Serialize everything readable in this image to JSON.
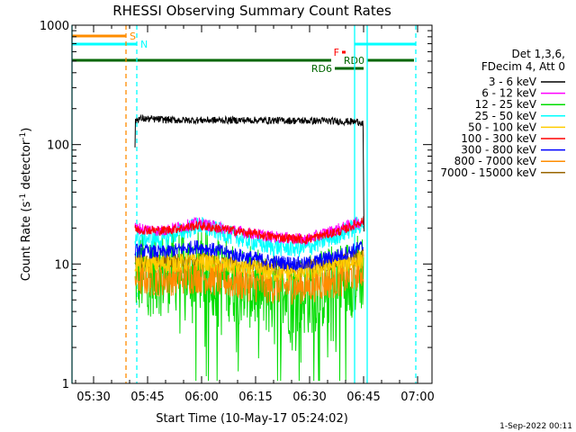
{
  "chart_data": {
    "type": "line",
    "title": "RHESSI Observing Summary Count Rates",
    "xlabel": "Start Time (10-May-17 05:24:02)",
    "ylabel": "Count Rate (s⁻¹ detector⁻¹)",
    "ylabel_parts": [
      "Count Rate (s",
      "-1",
      " detector",
      "-1",
      ")"
    ],
    "y_scale": "log",
    "xlim_min": [
      0,
      100
    ],
    "ylim": [
      1,
      1000
    ],
    "x_ticks": [
      {
        "t": 6,
        "label": "05:30"
      },
      {
        "t": 21,
        "label": "05:45"
      },
      {
        "t": 36,
        "label": "06:00"
      },
      {
        "t": 51,
        "label": "06:15"
      },
      {
        "t": 66,
        "label": "06:30"
      },
      {
        "t": 81,
        "label": "06:45"
      },
      {
        "t": 96,
        "label": "07:00"
      }
    ],
    "y_ticks": [
      {
        "v": 1,
        "label": "1"
      },
      {
        "v": 10,
        "label": "10"
      },
      {
        "v": 100,
        "label": "100"
      },
      {
        "v": 1000,
        "label": "1000"
      }
    ],
    "legend_header": [
      "Det 1,3,6,",
      "FDecim 4, Att 0"
    ],
    "legend_position": "right",
    "series": [
      {
        "name": "3 - 6 keV",
        "color": "#000000",
        "t": [
          17.5,
          17.5,
          18.5,
          30,
          50,
          70,
          80,
          80.9,
          81,
          81.2
        ],
        "v": [
          95,
          158,
          165,
          160,
          160,
          158,
          155,
          150,
          30,
          5
        ],
        "noise": 0.03
      },
      {
        "name": "6 - 12 keV",
        "color": "#ff00ff",
        "t": [
          17.5,
          25,
          35,
          45,
          55,
          65,
          75,
          81
        ],
        "v": [
          20,
          19,
          22,
          19,
          17,
          16,
          20,
          23
        ],
        "noise": 0.05
      },
      {
        "name": "12 - 25 keV",
        "color": "#00dd00",
        "t": [
          17.5,
          25,
          35,
          45,
          55,
          65,
          75,
          81
        ],
        "v": [
          8,
          8.5,
          9,
          7,
          5.5,
          5.5,
          7,
          9
        ],
        "noise": 0.35
      },
      {
        "name": "25 - 50 keV",
        "color": "#00ffff",
        "t": [
          17.5,
          25,
          35,
          45,
          55,
          65,
          75,
          81
        ],
        "v": [
          17,
          16,
          21,
          17,
          14,
          13.5,
          18,
          22
        ],
        "noise": 0.08
      },
      {
        "name": "50 - 100 keV",
        "color": "#ffcc00",
        "t": [
          17.5,
          25,
          35,
          45,
          55,
          65,
          75,
          81
        ],
        "v": [
          10,
          10,
          10.5,
          9.5,
          8.5,
          8.5,
          10,
          11
        ],
        "noise": 0.08
      },
      {
        "name": "100 - 300 keV",
        "color": "#ff0000",
        "t": [
          17.5,
          25,
          35,
          45,
          55,
          65,
          75,
          81
        ],
        "v": [
          19.5,
          19,
          21,
          19,
          17,
          16,
          19,
          23
        ],
        "noise": 0.04
      },
      {
        "name": "300 - 800 keV",
        "color": "#0000ff",
        "t": [
          17.5,
          25,
          35,
          45,
          55,
          65,
          75,
          81
        ],
        "v": [
          13,
          12.5,
          14,
          12,
          10.5,
          10,
          12,
          14
        ],
        "noise": 0.06
      },
      {
        "name": "800 - 7000 keV",
        "color": "#ff8c00",
        "t": [
          17.5,
          25,
          35,
          45,
          55,
          65,
          75,
          81
        ],
        "v": [
          7.5,
          7.5,
          8,
          7,
          6.5,
          6.5,
          7.5,
          9
        ],
        "noise": 0.15
      },
      {
        "name": "7000 - 15000 keV",
        "color": "#996600",
        "t": [
          17.5,
          25,
          35,
          45,
          55,
          65,
          75,
          81
        ],
        "v": [
          10.5,
          10.5,
          11,
          10,
          9.5,
          9.5,
          10.5,
          12
        ],
        "noise": 0.06
      }
    ],
    "flag_bars": [
      {
        "label": "S",
        "color": "#ff8c00",
        "t0": 0,
        "t1": 15,
        "level": 1,
        "label_at": "end"
      },
      {
        "label": "N",
        "color": "#00ffff",
        "t0": 0,
        "t1": 18,
        "level": 2,
        "label_at": "end"
      },
      {
        "label": "",
        "color": "#00ffff",
        "t0": 78.5,
        "t1": 95.5,
        "level": 2,
        "label_at": "none"
      },
      {
        "label": "F",
        "color": "#ff0000",
        "t0": 75,
        "t1": 76,
        "level": 3,
        "label_at": "start"
      },
      {
        "label": "",
        "color": "#006600",
        "t0": 0,
        "t1": 72,
        "level": 4,
        "label_at": "none"
      },
      {
        "label": "RD0",
        "color": "#006600",
        "t0": 82,
        "t1": 95,
        "level": 4,
        "label_at": "before"
      },
      {
        "label": "RD6",
        "color": "#006600",
        "t0": 73,
        "t1": 81,
        "level": 5,
        "label_at": "start"
      }
    ],
    "vlines": [
      {
        "t": 0,
        "color": "#00ffff",
        "style": "solid"
      },
      {
        "t": 15,
        "color": "#ff8c00",
        "style": "dashed"
      },
      {
        "t": 18,
        "color": "#00ffff",
        "style": "dashed"
      },
      {
        "t": 78.5,
        "color": "#00ffff",
        "style": "solid"
      },
      {
        "t": 82,
        "color": "#00ffff",
        "style": "solid"
      },
      {
        "t": 95.5,
        "color": "#00ffff",
        "style": "dashed"
      }
    ]
  },
  "footer": {
    "date_stamp": "1-Sep-2022 00:11"
  }
}
